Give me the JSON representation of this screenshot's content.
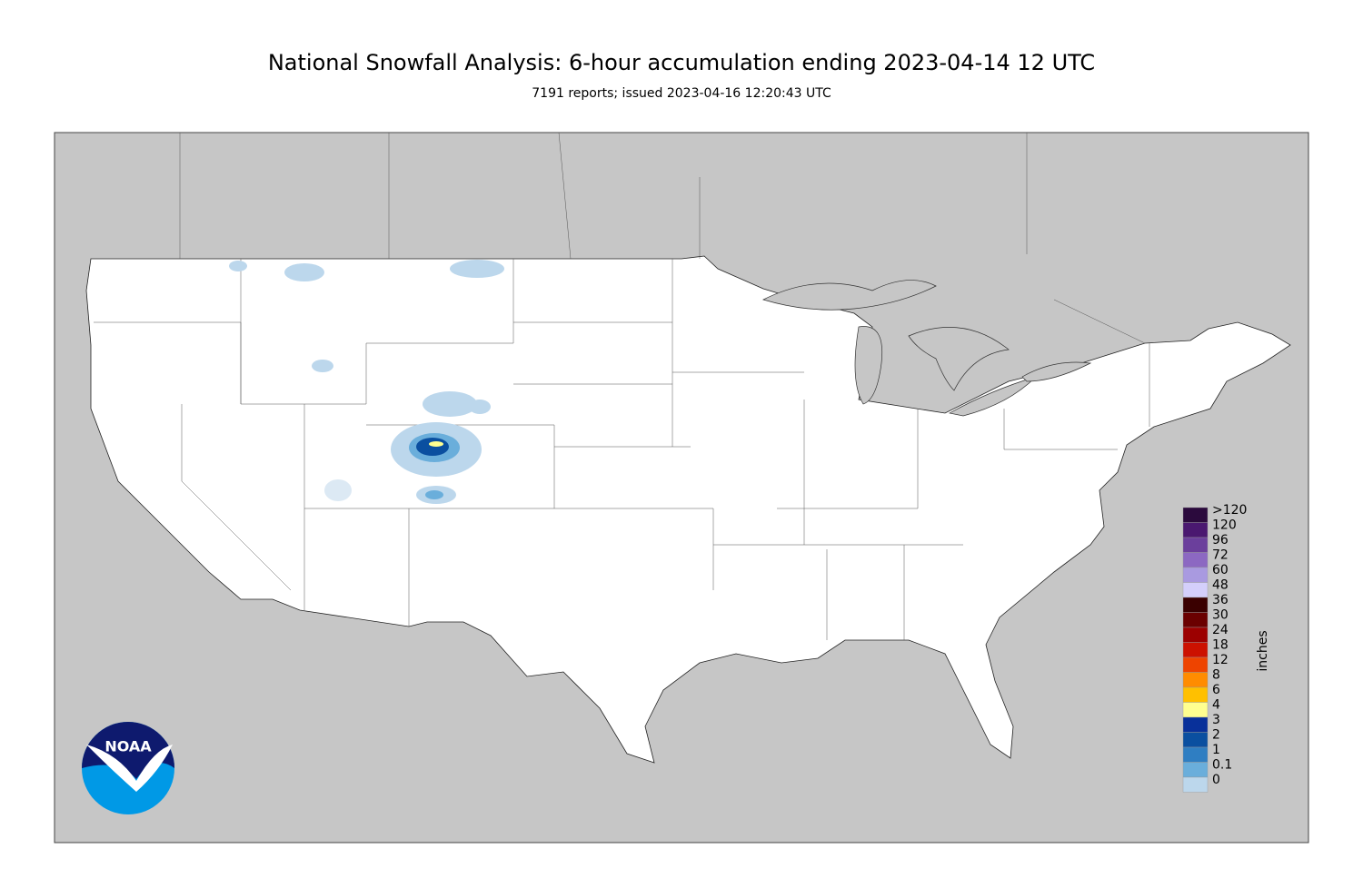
{
  "header": {
    "title": "National Snowfall Analysis: 6-hour accumulation ending 2023-04-14 12 UTC",
    "subtitle": "7191 reports; issued 2023-04-16 12:20:43 UTC"
  },
  "legend": {
    "unit": "inches",
    "items": [
      {
        "label": ">120",
        "color": "#2b0a3d"
      },
      {
        "label": "120",
        "color": "#4a1870"
      },
      {
        "label": "96",
        "color": "#6b3f9c"
      },
      {
        "label": "72",
        "color": "#8c68c2"
      },
      {
        "label": "60",
        "color": "#a99ae0"
      },
      {
        "label": "48",
        "color": "#d4cffb"
      },
      {
        "label": "36",
        "color": "#3a0000"
      },
      {
        "label": "30",
        "color": "#6a0000"
      },
      {
        "label": "24",
        "color": "#9c0000"
      },
      {
        "label": "18",
        "color": "#cc1100"
      },
      {
        "label": "12",
        "color": "#ee4400"
      },
      {
        "label": "8",
        "color": "#ff8c00"
      },
      {
        "label": "6",
        "color": "#ffc000"
      },
      {
        "label": "4",
        "color": "#ffff90"
      },
      {
        "label": "3",
        "color": "#08309a"
      },
      {
        "label": "2",
        "color": "#0a4fa0"
      },
      {
        "label": "1",
        "color": "#2f7ec2"
      },
      {
        "label": "0.1",
        "color": "#6aaedb"
      },
      {
        "label": "0",
        "color": "#bcd7ec"
      }
    ]
  },
  "logo": {
    "text": "NOAA"
  }
}
